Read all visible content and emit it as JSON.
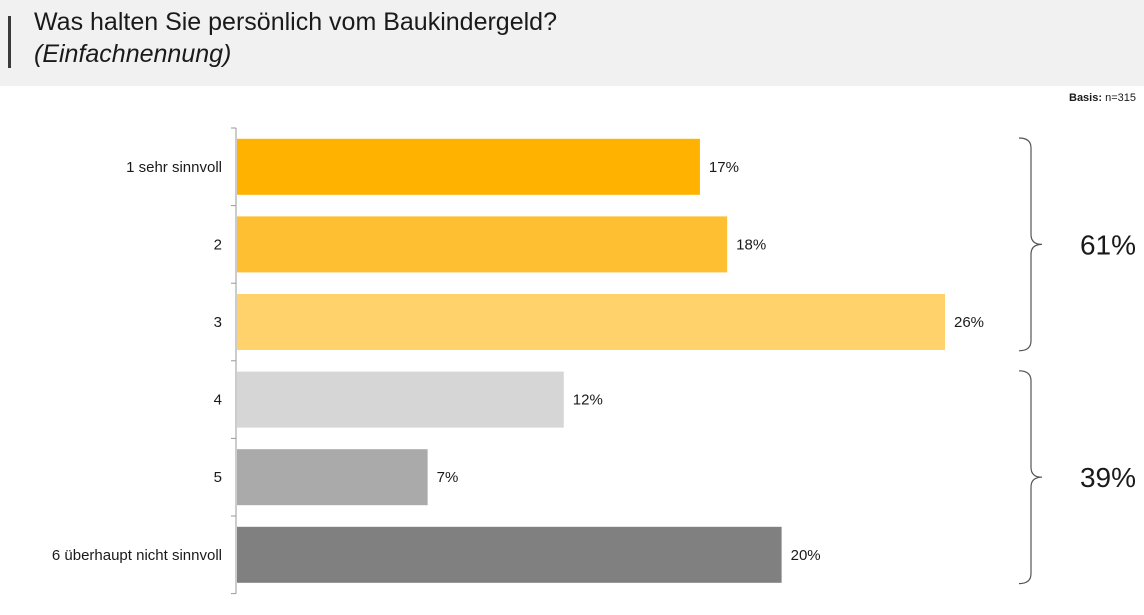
{
  "header": {
    "title": "Was halten Sie persönlich vom Baukindergeld?",
    "subtitle": "(Einfachnennung)"
  },
  "basis": {
    "label": "Basis:",
    "value": "n=315"
  },
  "chart_data": {
    "type": "bar",
    "orientation": "horizontal",
    "categories": [
      "1 sehr sinnvoll",
      "2",
      "3",
      "4",
      "5",
      "6 überhaupt nicht sinnvoll"
    ],
    "values": [
      17,
      18,
      26,
      12,
      7,
      20
    ],
    "value_labels": [
      "17%",
      "18%",
      "26%",
      "12%",
      "7%",
      "20%"
    ],
    "colors": [
      "#ffb300",
      "#ffbf33",
      "#ffd26b",
      "#d6d6d6",
      "#aaaaaa",
      "#808080"
    ],
    "xlim": [
      0,
      26
    ],
    "grid": false,
    "groups": [
      {
        "label": "61%",
        "categories": [
          "1 sehr sinnvoll",
          "2",
          "3"
        ]
      },
      {
        "label": "39%",
        "categories": [
          "4",
          "5",
          "6 überhaupt nicht sinnvoll"
        ]
      }
    ]
  }
}
